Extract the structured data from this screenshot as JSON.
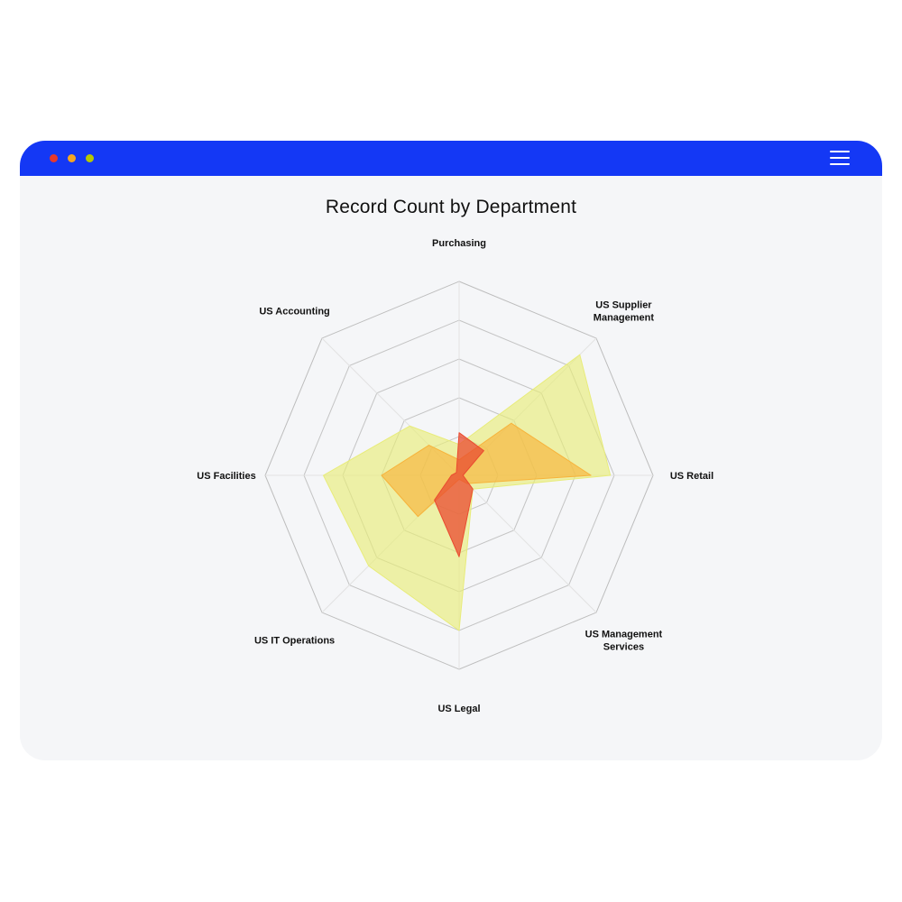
{
  "window": {
    "controls": [
      {
        "name": "close",
        "color": "#e8392b"
      },
      {
        "name": "minimize",
        "color": "#f5a623"
      },
      {
        "name": "maximize",
        "color": "#b5c900"
      }
    ],
    "menu_icon": "hamburger-menu-icon"
  },
  "chart_data": {
    "type": "radar",
    "title": "Record Count by Department",
    "axes": [
      [
        "Purchasing"
      ],
      [
        "US Supplier",
        "Management"
      ],
      [
        "US Retail"
      ],
      [
        "US Management",
        "Services"
      ],
      [
        "US Legal"
      ],
      [
        "US IT Operations"
      ],
      [
        "US Facilities"
      ],
      [
        "US Accounting"
      ]
    ],
    "rmax": 5,
    "rings": 5,
    "grid": true,
    "legend": "none",
    "series": [
      {
        "color": "#e8ec7a",
        "opacity": 0.65,
        "values": [
          0.8,
          4.4,
          3.9,
          0.5,
          4.0,
          3.3,
          3.5,
          1.8
        ]
      },
      {
        "color": "#f7b33b",
        "opacity": 0.65,
        "values": [
          0.4,
          1.9,
          3.4,
          0.3,
          0.1,
          1.5,
          2.0,
          1.1
        ]
      },
      {
        "color": "#ea4b30",
        "opacity": 0.75,
        "values": [
          1.1,
          0.9,
          0.1,
          0.5,
          2.1,
          0.9,
          0.2,
          0.1
        ]
      }
    ]
  }
}
